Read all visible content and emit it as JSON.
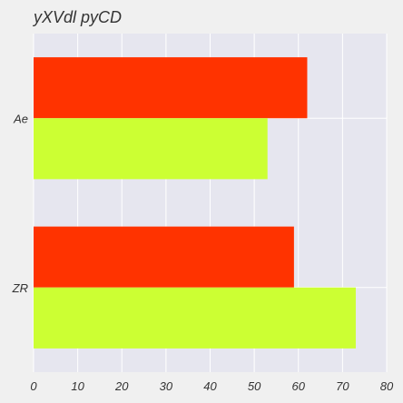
{
  "chart_data": {
    "type": "bar",
    "orientation": "horizontal",
    "title": "yXVdl pyCD",
    "xlabel": "",
    "ylabel": "",
    "categories": [
      "Ae",
      "ZR"
    ],
    "series": [
      {
        "color": "#ff3300",
        "values": [
          62,
          59
        ]
      },
      {
        "color": "#ccff33",
        "values": [
          53,
          73
        ]
      }
    ],
    "xlim": [
      0,
      80
    ],
    "xticks": [
      0,
      10,
      20,
      30,
      40,
      50,
      60,
      70,
      80
    ],
    "grid": true,
    "legend": "none",
    "colors": {
      "background": "#f0f0f0",
      "plot_background": "#e6e6ef",
      "grid": "#ffffff",
      "text": "#333333"
    }
  }
}
